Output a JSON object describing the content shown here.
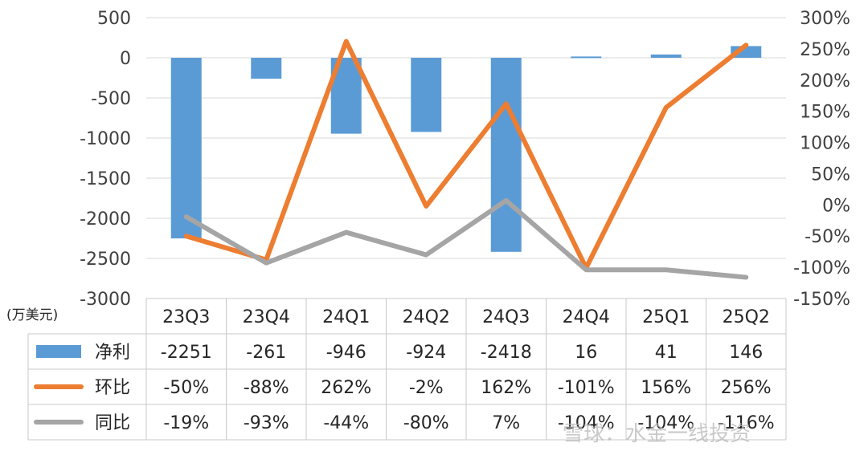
{
  "chart_data": {
    "type": "bar",
    "categories": [
      "23Q3",
      "23Q4",
      "24Q1",
      "24Q2",
      "24Q3",
      "24Q4",
      "25Q1",
      "25Q2"
    ],
    "y_left": {
      "range": [
        -3000,
        500
      ],
      "ticks": [
        500,
        0,
        -500,
        -1000,
        -1500,
        -2000,
        -2500,
        -3000
      ],
      "unit_label": "(万美元)"
    },
    "y_right": {
      "range": [
        -150,
        300
      ],
      "ticks": [
        "300%",
        "250%",
        "200%",
        "150%",
        "100%",
        "50%",
        "0%",
        "-50%",
        "-100%",
        "-150%"
      ]
    },
    "grid": true,
    "legend_placement": "data table rows",
    "series": [
      {
        "name": "净利",
        "type": "bar",
        "axis": "left",
        "color": "#5b9bd5",
        "values": [
          -2251,
          -261,
          -946,
          -924,
          -2418,
          16,
          41,
          146
        ],
        "labels": [
          "-2251",
          "-261",
          "-946",
          "-924",
          "-2418",
          "16",
          "41",
          "146"
        ]
      },
      {
        "name": "环比",
        "type": "line",
        "axis": "right",
        "color": "#ed7d31",
        "values": [
          -50,
          -88,
          262,
          -2,
          162,
          -101,
          156,
          256
        ],
        "labels": [
          "-50%",
          "-88%",
          "262%",
          "-2%",
          "162%",
          "-101%",
          "156%",
          "256%"
        ]
      },
      {
        "name": "同比",
        "type": "line",
        "axis": "right",
        "color": "#a5a5a5",
        "values": [
          -19,
          -93,
          -44,
          -80,
          7,
          -104,
          -104,
          -116
        ],
        "labels": [
          "-19%",
          "-93%",
          "-44%",
          "-80%",
          "7%",
          "-104%",
          "-104%",
          "-116%"
        ]
      }
    ]
  },
  "watermark": "雪球：水金一线投资"
}
